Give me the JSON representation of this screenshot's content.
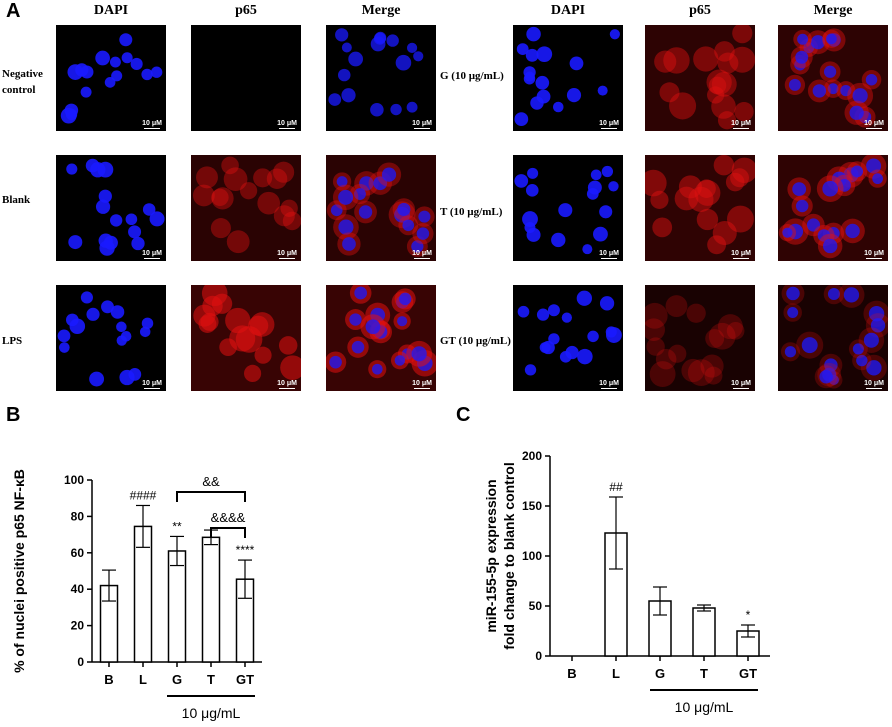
{
  "panel_a": {
    "letter": "A",
    "columns": [
      "DAPI",
      "p65",
      "Merge"
    ],
    "left_rows": [
      {
        "label_lines": [
          "Negative",
          "control"
        ],
        "p65_level": 0.0
      },
      {
        "label_lines": [
          "Blank"
        ],
        "p65_level": 0.75
      },
      {
        "label_lines": [
          "LPS"
        ],
        "p65_level": 1.0
      }
    ],
    "right_rows": [
      {
        "label_lines": [
          "G (10 µg/mL)"
        ],
        "p65_level": 0.8
      },
      {
        "label_lines": [
          "T (10 µg/mL)"
        ],
        "p65_level": 0.85
      },
      {
        "label_lines": [
          "GT (10 µg/mL)"
        ],
        "p65_level": 0.45
      }
    ],
    "scale_bar_label": "10 μM",
    "colors": {
      "dapi": "#1a1aff",
      "p65": "#e01010",
      "background": "#000000"
    }
  },
  "chart_data": [
    {
      "panel": "B",
      "type": "bar",
      "categories": [
        "B",
        "L",
        "G",
        "T",
        "GT"
      ],
      "values": [
        42,
        74.5,
        61,
        68.5,
        45.5
      ],
      "errors": [
        8.5,
        11.5,
        8,
        4,
        10.5
      ],
      "ylabel": "% of nuclei positive p65 NF-κB",
      "ylim": [
        0,
        100
      ],
      "yticks": [
        0,
        20,
        40,
        60,
        80,
        100
      ],
      "annotations": [
        {
          "category": "L",
          "text": "####"
        },
        {
          "category": "G",
          "text": "**"
        },
        {
          "category": "GT",
          "text": "****"
        }
      ],
      "brackets": [
        {
          "from": "G",
          "to": "GT",
          "text": "&&"
        },
        {
          "from": "T",
          "to": "GT",
          "text": "&&&&"
        }
      ],
      "group_label": {
        "from": "G",
        "to": "GT",
        "text": "10 μg/mL"
      },
      "bar_fill": "#ffffff",
      "bar_stroke": "#000000"
    },
    {
      "panel": "C",
      "type": "bar",
      "categories": [
        "B",
        "L",
        "G",
        "T",
        "GT"
      ],
      "values": [
        0,
        123,
        55,
        48,
        25
      ],
      "errors": [
        0,
        36,
        14,
        3,
        6
      ],
      "ylabel_lines": [
        "miR-155-5p expression",
        "fold change to blank control"
      ],
      "ylim": [
        0,
        200
      ],
      "yticks": [
        0,
        50,
        100,
        150,
        200
      ],
      "annotations": [
        {
          "category": "L",
          "text": "##"
        },
        {
          "category": "GT",
          "text": "*"
        }
      ],
      "group_label": {
        "from": "G",
        "to": "GT",
        "text": "10 μg/mL"
      },
      "bar_fill": "#ffffff",
      "bar_stroke": "#000000"
    }
  ],
  "panel_b_letter": "B",
  "panel_c_letter": "C"
}
